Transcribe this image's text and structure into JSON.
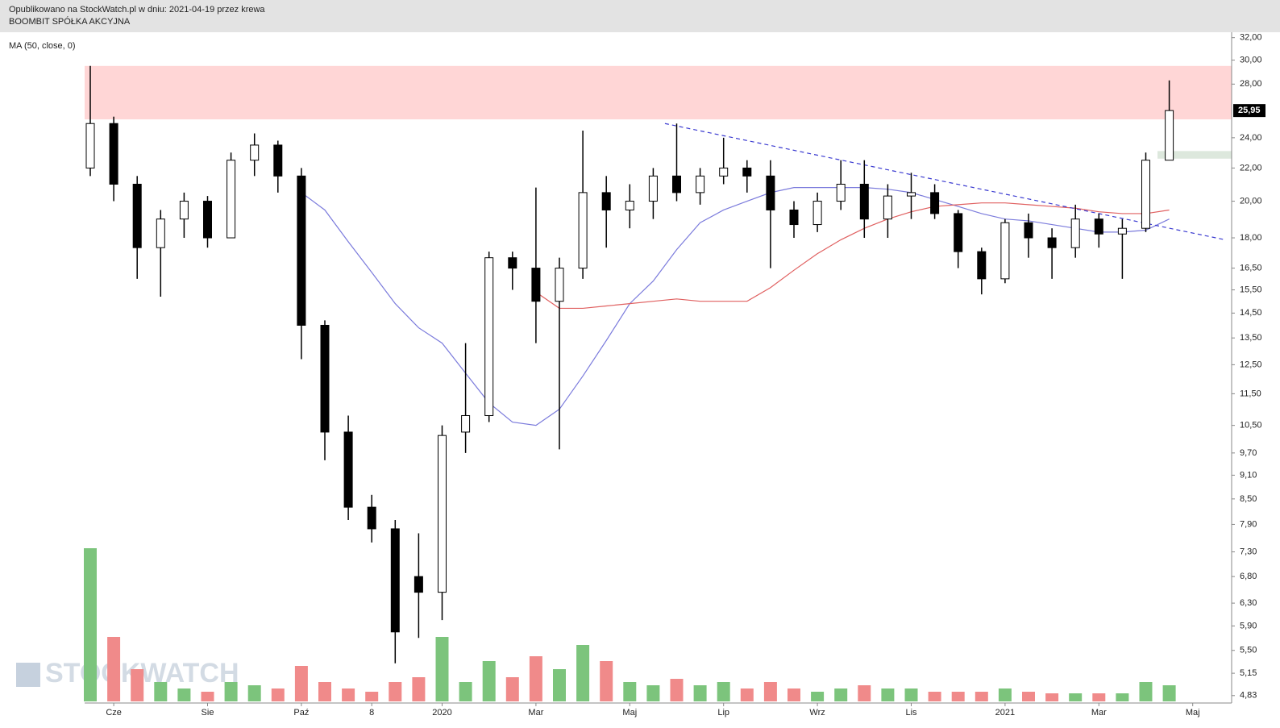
{
  "header": {
    "line1": "Opublikowano na StockWatch.pl w dniu: 2021-04-19 przez krewa",
    "line2": "BOOMBIT SPÓŁKA AKCYJNA"
  },
  "watermark": "STOCKWATCH",
  "chart_data": {
    "type": "candlestick",
    "log_scale": true,
    "ylim": [
      4.75,
      32.5
    ],
    "yticks": [
      {
        "value": 32,
        "label": "32,00"
      },
      {
        "value": 30,
        "label": "30,00"
      },
      {
        "value": 28,
        "label": "28,00"
      },
      {
        "value": 24,
        "label": "24,00"
      },
      {
        "value": 22,
        "label": "22,00"
      },
      {
        "value": 20,
        "label": "20,00"
      },
      {
        "value": 18,
        "label": "18,00"
      },
      {
        "value": 16.5,
        "label": "16,50"
      },
      {
        "value": 15.5,
        "label": "15,50"
      },
      {
        "value": 14.5,
        "label": "14,50"
      },
      {
        "value": 13.5,
        "label": "13,50"
      },
      {
        "value": 12.5,
        "label": "12,50"
      },
      {
        "value": 11.5,
        "label": "11,50"
      },
      {
        "value": 10.5,
        "label": "10,50"
      },
      {
        "value": 9.7,
        "label": "9,70"
      },
      {
        "value": 9.1,
        "label": "9,10"
      },
      {
        "value": 8.5,
        "label": "8,50"
      },
      {
        "value": 7.9,
        "label": "7,90"
      },
      {
        "value": 7.3,
        "label": "7,30"
      },
      {
        "value": 6.8,
        "label": "6,80"
      },
      {
        "value": 6.3,
        "label": "6,30"
      },
      {
        "value": 5.9,
        "label": "5,90"
      },
      {
        "value": 5.5,
        "label": "5,50"
      },
      {
        "value": 5.15,
        "label": "5,15"
      },
      {
        "value": 4.83,
        "label": "4,83"
      }
    ],
    "categories": [
      null,
      "Cze",
      null,
      null,
      null,
      "Sie",
      null,
      null,
      null,
      "Paź",
      null,
      null,
      "8",
      null,
      null,
      "2020",
      null,
      null,
      null,
      "Mar",
      null,
      null,
      null,
      "Maj",
      null,
      null,
      null,
      "Lip",
      null,
      null,
      null,
      "Wrz",
      null,
      null,
      null,
      "Lis",
      null,
      null,
      null,
      "2021",
      null,
      null,
      null,
      "Mar",
      null,
      null,
      null,
      "Maj"
    ],
    "ohlc": [
      [
        22,
        29.5,
        21.5,
        25
      ],
      [
        25,
        25.5,
        20,
        21
      ],
      [
        21,
        21.5,
        16,
        17.5
      ],
      [
        17.5,
        19.5,
        15.2,
        19
      ],
      [
        19,
        20.5,
        18,
        20
      ],
      [
        20,
        20.3,
        17.5,
        18
      ],
      [
        18,
        23,
        18,
        22.5
      ],
      [
        22.5,
        24.3,
        21.5,
        23.5
      ],
      [
        23.5,
        23.8,
        20.5,
        21.5
      ],
      [
        21.5,
        22,
        12.7,
        14
      ],
      [
        14,
        14.2,
        9.5,
        10.3
      ],
      [
        10.3,
        10.8,
        8,
        8.3
      ],
      [
        8.3,
        8.6,
        7.5,
        7.8
      ],
      [
        7.8,
        8,
        5.3,
        5.8
      ],
      [
        6.8,
        7.7,
        5.7,
        6.5
      ],
      [
        6.5,
        10.5,
        6,
        10.2
      ],
      [
        10.3,
        13.3,
        9.7,
        10.8
      ],
      [
        10.8,
        17.3,
        10.6,
        17
      ],
      [
        17,
        17.3,
        15.5,
        16.5
      ],
      [
        16.5,
        20.8,
        13.3,
        15
      ],
      [
        15,
        17,
        9.8,
        16.5
      ],
      [
        16.5,
        24.5,
        16,
        20.5
      ],
      [
        20.5,
        21.5,
        17.5,
        19.5
      ],
      [
        19.5,
        21,
        18.5,
        20
      ],
      [
        20,
        22,
        19,
        21.5
      ],
      [
        21.5,
        25,
        20,
        20.5
      ],
      [
        20.5,
        22,
        19.8,
        21.5
      ],
      [
        21.5,
        24,
        21,
        22
      ],
      [
        22,
        22.5,
        20.5,
        21.5
      ],
      [
        21.5,
        22.5,
        16.5,
        19.5
      ],
      [
        19.5,
        20,
        18,
        18.7
      ],
      [
        18.7,
        20.5,
        18.3,
        20
      ],
      [
        20,
        22.5,
        19.5,
        21
      ],
      [
        21,
        22.5,
        18,
        19
      ],
      [
        19,
        21,
        18,
        20.3
      ],
      [
        20.3,
        21.7,
        19,
        20.5
      ],
      [
        20.5,
        21,
        19,
        19.3
      ],
      [
        19.3,
        19.5,
        16.5,
        17.3
      ],
      [
        17.3,
        17.5,
        15.3,
        16
      ],
      [
        16,
        19,
        15.8,
        18.8
      ],
      [
        18.8,
        19.3,
        17,
        18
      ],
      [
        18,
        18.5,
        16,
        17.5
      ],
      [
        17.5,
        19.8,
        17,
        19
      ],
      [
        19,
        19.3,
        17.5,
        18.2
      ],
      [
        18.2,
        19,
        16,
        18.5
      ],
      [
        18.5,
        23,
        18.3,
        22.5
      ],
      [
        22.5,
        28.3,
        22.5,
        25.95
      ],
      null
    ],
    "last_price": {
      "value": 25.95,
      "label": "25,95"
    },
    "up_color": "#ffffff",
    "down_color": "#000000",
    "series": [
      {
        "name": "MA (50, close, 0)",
        "color": "#7b7bdc",
        "values": [
          null,
          null,
          null,
          null,
          null,
          null,
          null,
          null,
          null,
          20.5,
          19.5,
          17.8,
          16.3,
          14.9,
          13.9,
          13.3,
          12.2,
          11.2,
          10.6,
          10.5,
          11.0,
          12.1,
          13.4,
          14.9,
          15.9,
          17.4,
          18.8,
          19.5,
          20.0,
          20.5,
          20.8,
          20.8,
          20.8,
          20.8,
          20.7,
          20.5,
          20.1,
          19.7,
          19.3,
          19.0,
          18.9,
          18.7,
          18.5,
          18.3,
          18.3,
          18.4,
          19.0,
          null
        ]
      },
      {
        "color": "#e06060",
        "values": [
          null,
          null,
          null,
          null,
          null,
          null,
          null,
          null,
          null,
          null,
          null,
          null,
          null,
          null,
          null,
          null,
          null,
          null,
          null,
          15.4,
          14.7,
          14.7,
          14.8,
          14.9,
          15.0,
          15.1,
          15.0,
          15.0,
          15.0,
          15.6,
          16.4,
          17.2,
          17.9,
          18.5,
          19.0,
          19.4,
          19.7,
          19.8,
          19.9,
          19.9,
          19.8,
          19.7,
          19.6,
          19.4,
          19.3,
          19.3,
          19.5,
          null
        ]
      }
    ],
    "volume": [
      95,
      40,
      20,
      12,
      8,
      6,
      12,
      10,
      8,
      22,
      12,
      8,
      6,
      12,
      15,
      40,
      12,
      25,
      15,
      28,
      20,
      35,
      25,
      12,
      10,
      14,
      10,
      12,
      8,
      12,
      8,
      6,
      8,
      10,
      8,
      8,
      6,
      6,
      6,
      8,
      6,
      5,
      5,
      5,
      5,
      12,
      10,
      null
    ],
    "volume_ylim": [
      0,
      100
    ],
    "volume_up_color": "#7cc47c",
    "volume_down_color": "#f08a8a",
    "zones": [
      {
        "range": [
          25.3,
          29.5
        ],
        "color": "#ffd6d6"
      },
      {
        "range": [
          22.6,
          23.1
        ],
        "color": "#dde8dd"
      }
    ],
    "trendline": {
      "values": [
        25.0,
        17.9
      ],
      "color": "#3a3ad0"
    }
  }
}
